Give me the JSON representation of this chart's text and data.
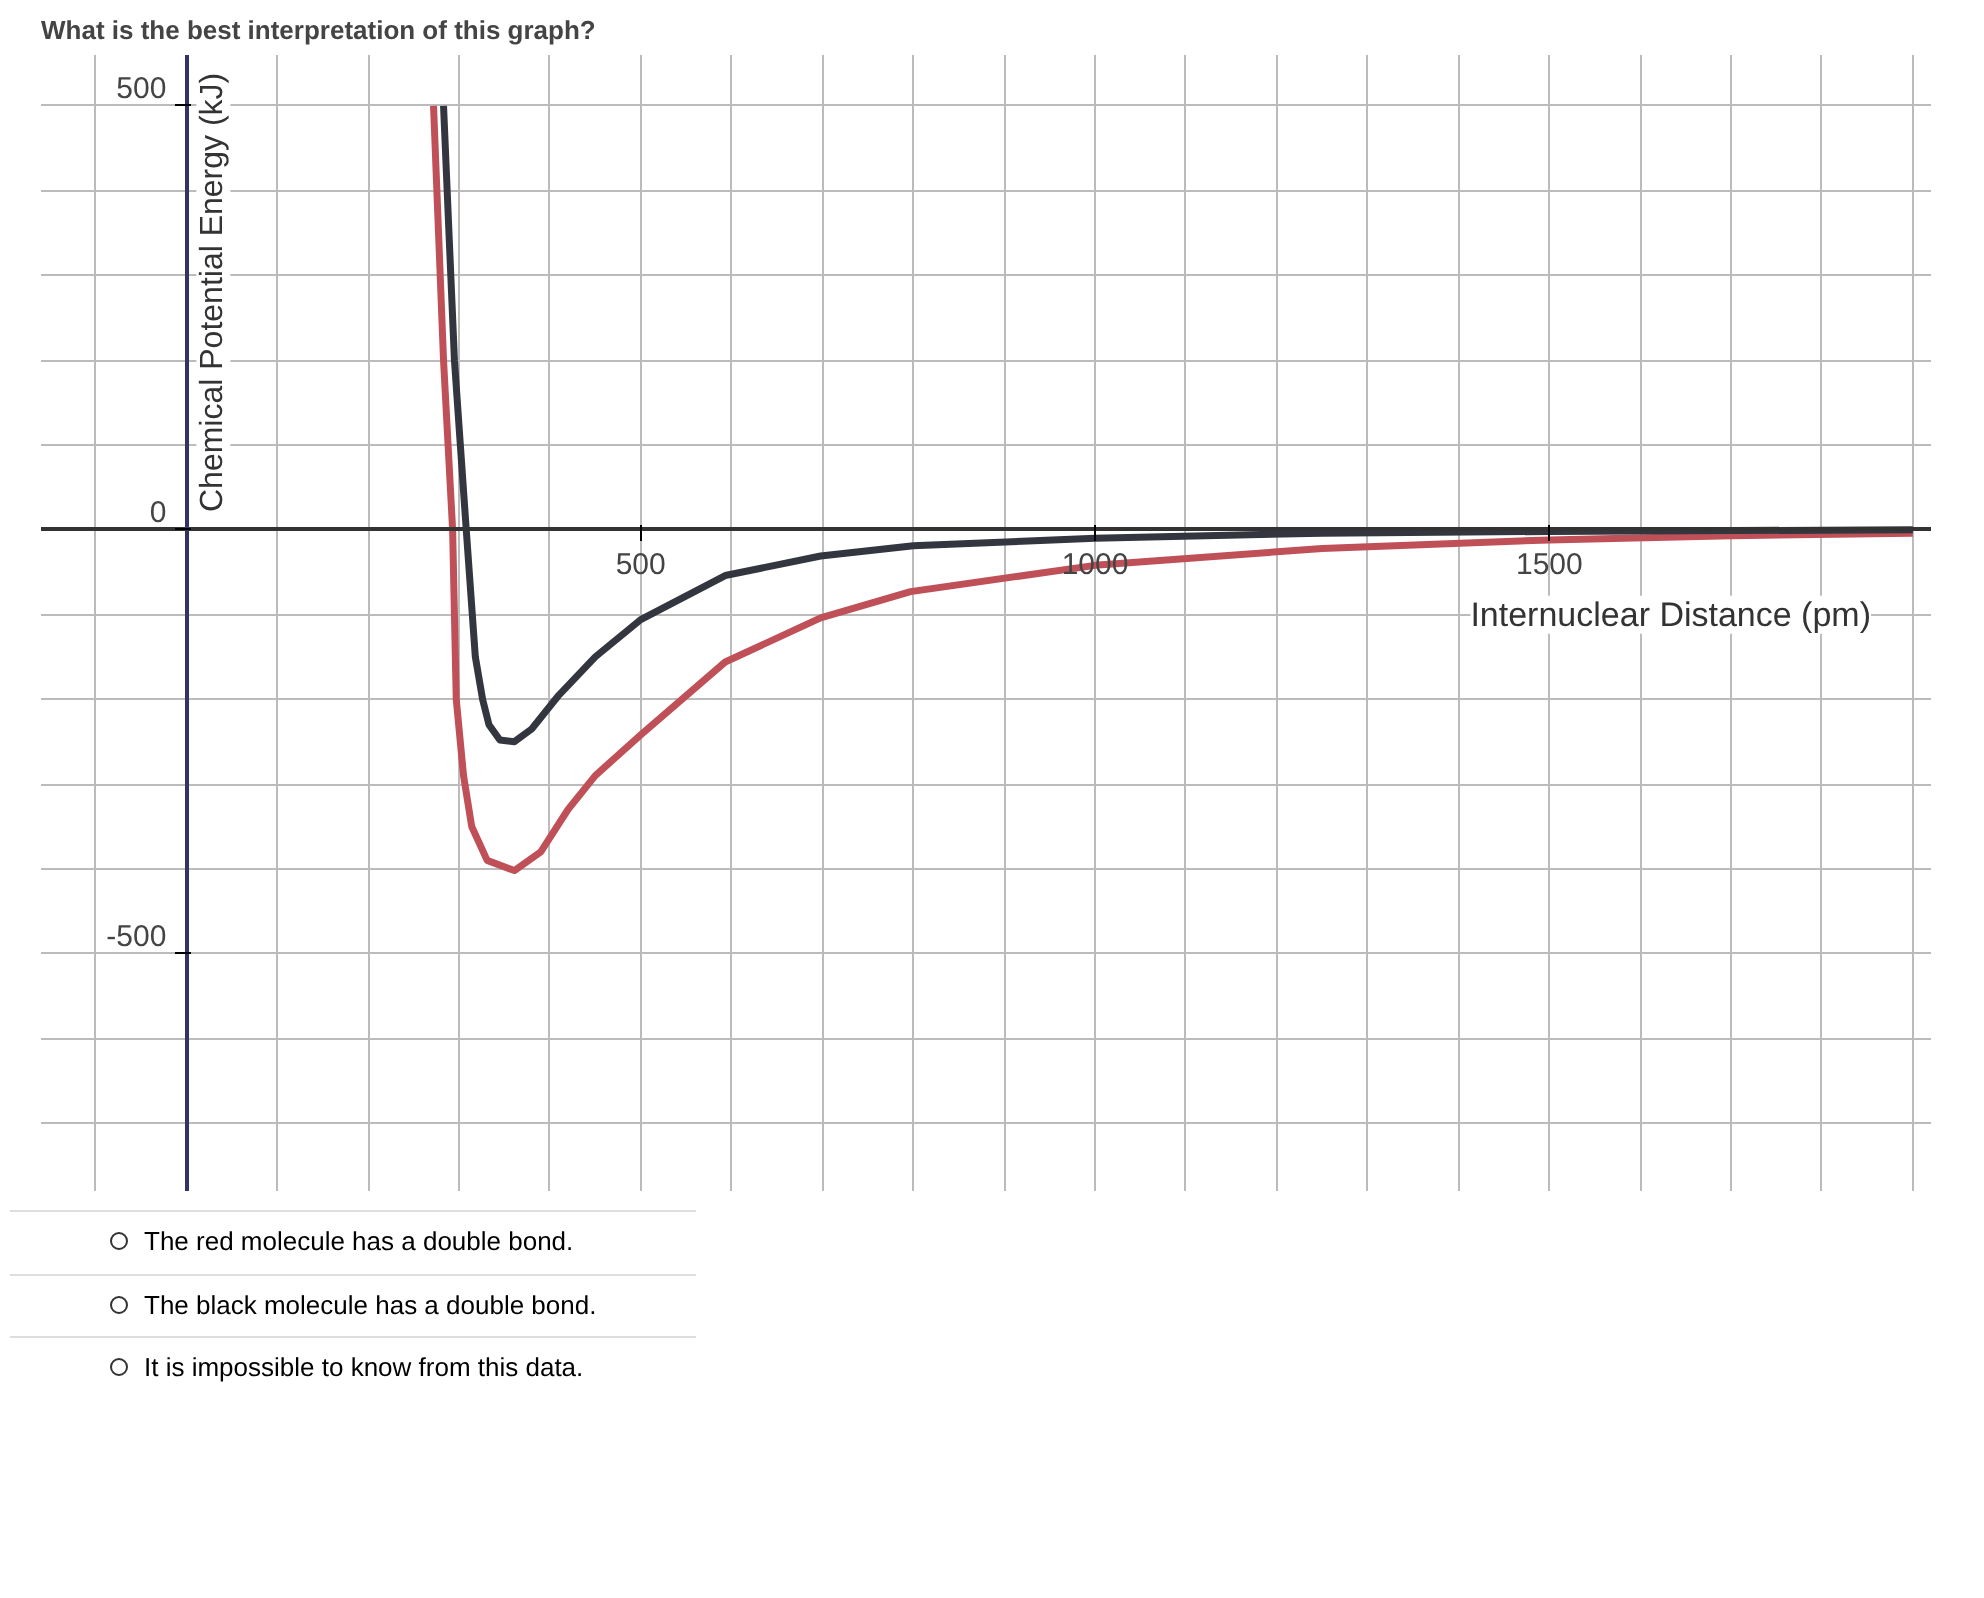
{
  "chart_data": {
    "type": "line",
    "title": "What is the best interpretation of this graph?",
    "xlabel": "Internuclear Distance (pm)",
    "ylabel": "Chemical Potential Energy (kJ)",
    "xlim": [
      -160,
      1920
    ],
    "ylim": [
      -780,
      560
    ],
    "xticks": [
      500,
      1000,
      1500
    ],
    "yticks": [
      {
        "value": -500,
        "label": "-500"
      },
      {
        "value": 0,
        "label": "0"
      },
      {
        "value": 500,
        "label": "500"
      }
    ],
    "grid": true,
    "marker": "none",
    "line_style": "solid",
    "series": [
      {
        "color": "#c05058",
        "x": [
          272,
          283,
          293,
          297,
          305,
          314,
          331,
          361,
          390,
          420,
          450,
          500,
          593,
          698,
          797,
          1000,
          1250,
          1500,
          1700,
          1900
        ],
        "values": [
          500,
          200,
          0,
          -200,
          -290,
          -350,
          -390,
          -402,
          -380,
          -330,
          -290,
          -242,
          -156,
          -104,
          -73,
          -42,
          -22,
          -12,
          -7,
          -4
        ]
      },
      {
        "color": "#33363f",
        "x": [
          283,
          295,
          308,
          318,
          326,
          333,
          345,
          361,
          380,
          410,
          450,
          500,
          593,
          698,
          800,
          1000,
          1250,
          1500,
          1900
        ],
        "values": [
          500,
          200,
          0,
          -150,
          -200,
          -230,
          -248,
          -250,
          -235,
          -195,
          -150,
          -106,
          -54,
          -31,
          -19,
          -10,
          -4,
          -2,
          0
        ]
      }
    ],
    "annotations": [
      "The red molecule has a double bond.",
      "The black molecule has a double bond.",
      "It is impossible to know from this data."
    ]
  }
}
